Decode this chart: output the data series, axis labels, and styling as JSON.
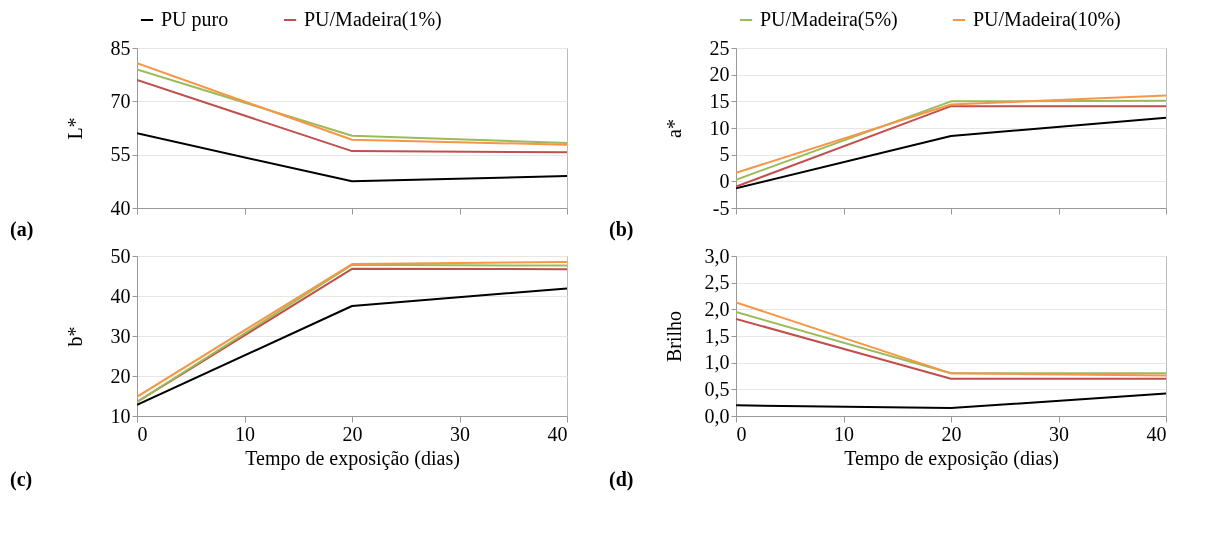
{
  "chart_data": [
    {
      "type": "line",
      "ylabel": "L*",
      "annotations": [
        "(a)"
      ],
      "xlim": [
        0,
        40
      ],
      "xticks": [
        0,
        10,
        20,
        30,
        40
      ],
      "ylim": [
        40,
        85
      ],
      "yticks": [
        40,
        55,
        70,
        85
      ],
      "grid": "y",
      "legend": "top",
      "tick_labels": "y",
      "x": [
        0,
        20,
        40
      ],
      "series": [
        {
          "name": "PU puro",
          "color": "#000000",
          "values": [
            61,
            47.5,
            49
          ]
        },
        {
          "name": "PU/Madeira(1%)",
          "color": "#c0504d",
          "values": [
            76,
            56,
            55.7
          ]
        },
        {
          "color": "#9bbb59",
          "values": [
            79,
            60.3,
            58.3
          ]
        },
        {
          "color": "#f79646",
          "values": [
            80.7,
            59.2,
            57.8
          ]
        }
      ]
    },
    {
      "type": "line",
      "ylabel": "a*",
      "annotations": [
        "(b)"
      ],
      "xlim": [
        0,
        40
      ],
      "xticks": [
        0,
        10,
        20,
        30,
        40
      ],
      "ylim": [
        -5,
        25
      ],
      "yticks": [
        -5,
        0,
        5,
        10,
        15,
        20,
        25
      ],
      "grid": "y",
      "legend": "top",
      "tick_labels": "y",
      "x": [
        0,
        20,
        40
      ],
      "series": [
        {
          "color": "#000000",
          "values": [
            -1.3,
            8.5,
            11.9
          ]
        },
        {
          "color": "#c0504d",
          "values": [
            -1,
            14.1,
            14.1
          ]
        },
        {
          "name": "PU/Madeira(5%)",
          "color": "#9bbb59",
          "values": [
            0.3,
            15,
            15.1
          ]
        },
        {
          "name": "PU/Madeira(10%)",
          "color": "#f79646",
          "values": [
            1.6,
            14.4,
            16.1
          ]
        }
      ]
    },
    {
      "type": "line",
      "ylabel": "b*",
      "xlabel": "Tempo de exposição (dias)",
      "annotations": [
        "(c)"
      ],
      "xlim": [
        0,
        40
      ],
      "xticks": [
        0,
        10,
        20,
        30,
        40
      ],
      "ylim": [
        10,
        50
      ],
      "yticks": [
        10,
        20,
        30,
        40,
        50
      ],
      "grid": "y",
      "x": [
        0,
        20,
        40
      ],
      "series": [
        {
          "color": "#000000",
          "values": [
            12.8,
            37.5,
            41.9
          ]
        },
        {
          "color": "#c0504d",
          "values": [
            13.5,
            46.8,
            46.7
          ]
        },
        {
          "color": "#9bbb59",
          "values": [
            13.5,
            47.8,
            47.6
          ]
        },
        {
          "color": "#f79646",
          "values": [
            14.8,
            48,
            48.5
          ]
        }
      ]
    },
    {
      "type": "line",
      "ylabel": "Brilho",
      "xlabel": "Tempo de exposição (dias)",
      "annotations": [
        "(d)"
      ],
      "xlim": [
        0,
        40
      ],
      "xticks": [
        0,
        10,
        20,
        30,
        40
      ],
      "ylim": [
        0,
        3
      ],
      "yticks": [
        {
          "value": 0,
          "label": "0,0"
        },
        {
          "value": 0.5,
          "label": "0,5"
        },
        {
          "value": 1,
          "label": "1,0"
        },
        {
          "value": 1.5,
          "label": "1,5"
        },
        {
          "value": 2,
          "label": "2,0"
        },
        {
          "value": 2.5,
          "label": "2,5"
        },
        {
          "value": 3,
          "label": "3,0"
        }
      ],
      "grid": "y",
      "x": [
        0,
        20,
        40
      ],
      "series": [
        {
          "color": "#000000",
          "values": [
            0.2,
            0.15,
            0.42
          ]
        },
        {
          "color": "#c0504d",
          "values": [
            1.82,
            0.7,
            0.7
          ]
        },
        {
          "color": "#9bbb59",
          "values": [
            1.95,
            0.8,
            0.8
          ]
        },
        {
          "color": "#f79646",
          "values": [
            2.13,
            0.8,
            0.76
          ]
        }
      ]
    }
  ]
}
